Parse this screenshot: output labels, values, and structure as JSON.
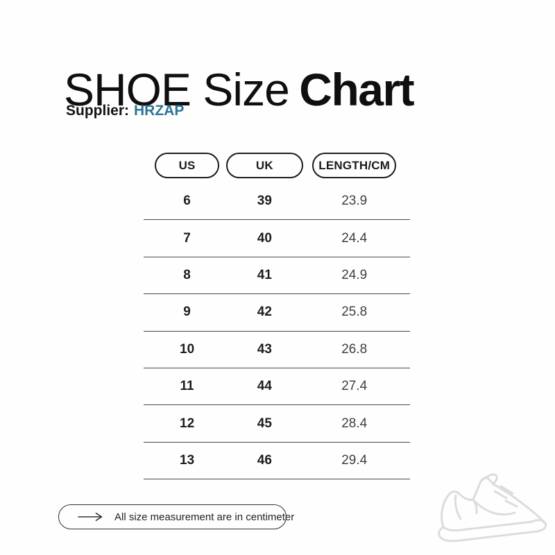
{
  "page": {
    "background": "#fefefe"
  },
  "header": {
    "title_regular": "SHOE Size",
    "title_bold": "Chart",
    "supplier_label": "Supplier:",
    "supplier_name": "HRZAP"
  },
  "colors": {
    "supplier_accent": "#2e7496",
    "text_primary": "#1b1b1b",
    "text_secondary": "#3f3f3f",
    "row_divider": "#474747",
    "pill_border": "#1b1b1b",
    "shoe_outline": "#dcdcdc"
  },
  "table": {
    "columns": [
      {
        "label": "US"
      },
      {
        "label": "UK"
      },
      {
        "label": "LENGTH/CM"
      }
    ],
    "rows": [
      {
        "us": "6",
        "uk": "39",
        "length": "23.9"
      },
      {
        "us": "7",
        "uk": "40",
        "length": "24.4"
      },
      {
        "us": "8",
        "uk": "41",
        "length": "24.9"
      },
      {
        "us": "9",
        "uk": "42",
        "length": "25.8"
      },
      {
        "us": "10",
        "uk": "43",
        "length": "26.8"
      },
      {
        "us": "11",
        "uk": "44",
        "length": "27.4"
      },
      {
        "us": "12",
        "uk": "45",
        "length": "28.4"
      },
      {
        "us": "13",
        "uk": "46",
        "length": "29.4"
      }
    ]
  },
  "footer": {
    "note": "All size measurement are in centimeter",
    "arrow_icon": "long-right-arrow"
  },
  "decoration": {
    "shoe_icon": "sneaker-outline"
  }
}
